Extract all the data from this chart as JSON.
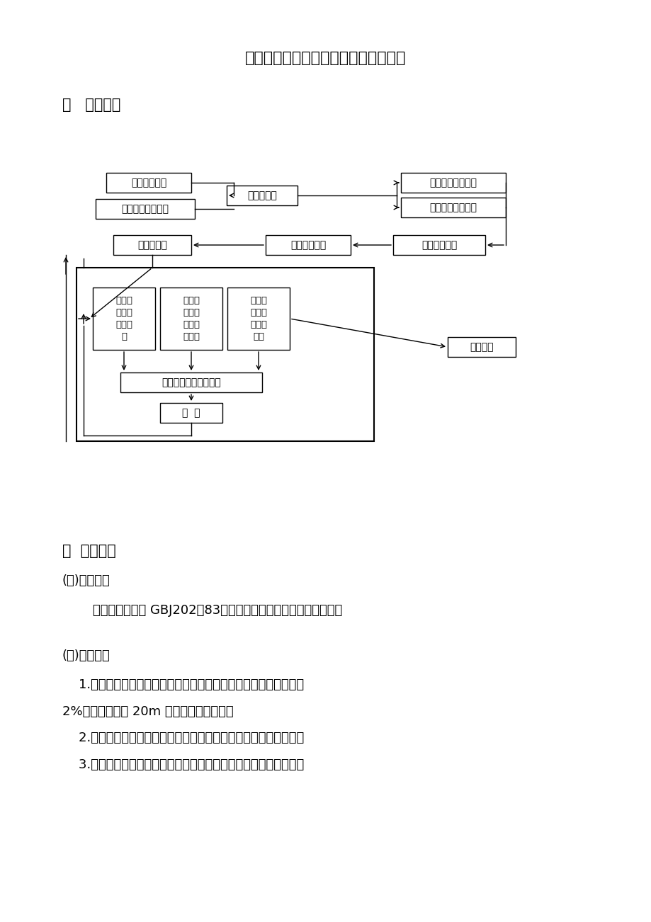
{
  "title": "一般基坑、基槽开挖分项工程实施细则",
  "section1_title": "一   工艺流程",
  "section2_title": "二  质量标准",
  "subsection1": "(一)依据标准",
  "subsection1_text": "    应符合国家标准 GBJ202－83《地基与基础工程施工及验收规范》",
  "subsection2": "(二)基本要求",
  "para1_line1": "    1.场地平整，排水坡度在设计无要求情况下应向排水方向作不小于",
  "para1_line2": "2%的坡度，按每 20m 的检查点逐点检查。",
  "para2": "    2.施工区域及施工周围的上下障碍物已作好折迁处理，防护措施。",
  "para3": "    3.施工机械试运转正常，道路、排水沟畅通，路面应高于施工场地",
  "bg_color": "#ffffff",
  "text_color": "#000000"
}
